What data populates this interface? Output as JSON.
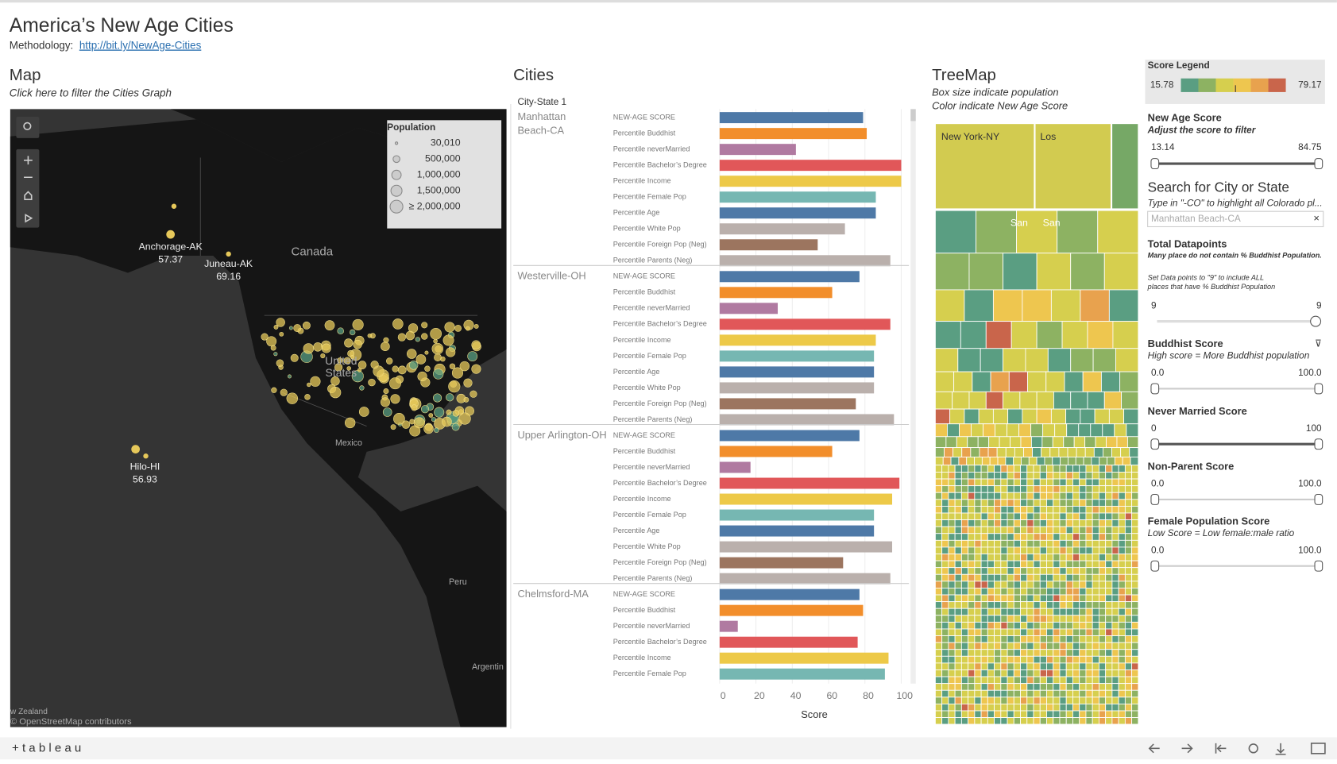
{
  "header": {
    "title": "America’s New Age Cities",
    "methodology_label": "Methodology:",
    "methodology_link": "http://bit.ly/NewAge-Cities"
  },
  "map": {
    "title": "Map",
    "subtitle": "Click here to filter the Cities Graph",
    "legend_title": "Population",
    "legend_items": [
      "30,010",
      "500,000",
      "1,000,000",
      "1,500,000",
      "≥ 2,000,000"
    ],
    "places": [
      {
        "label": "Anchorage-AK",
        "score": 57.37
      },
      {
        "label": "Juneau-AK",
        "score": 69.16
      },
      {
        "label": "Hilo-HI",
        "score": 56.93
      }
    ],
    "geo_labels": [
      "Canada",
      "United",
      "States",
      "Mexico",
      "Peru",
      "Argentin",
      "w Zealand"
    ],
    "attribution": "© OpenStreetMap contributors"
  },
  "chart_data": {
    "type": "bar",
    "orientation": "horizontal",
    "title": "Cities",
    "header": "City-State 1",
    "categories": [
      "Manhattan Beach-CA",
      "Westerville-OH",
      "Upper Arlington-OH",
      "Chelmsford-MA"
    ],
    "series": [
      {
        "name": "NEW-AGE SCORE",
        "color": "#4e79a7",
        "values": [
          79,
          77,
          77,
          77
        ]
      },
      {
        "name": "Percentile Buddhist",
        "color": "#f28e2b",
        "values": [
          81,
          62,
          62,
          79
        ]
      },
      {
        "name": "Percentile neverMarried",
        "color": "#b07aa1",
        "values": [
          42,
          32,
          17,
          10
        ]
      },
      {
        "name": "Percentile Bachelor’s Degree",
        "color": "#e15759",
        "values": [
          100,
          94,
          99,
          76
        ]
      },
      {
        "name": "Percentile Income",
        "color": "#edc948",
        "values": [
          100,
          86,
          95,
          93
        ]
      },
      {
        "name": "Percentile Female Pop",
        "color": "#76b7b2",
        "values": [
          86,
          85,
          85,
          91
        ]
      },
      {
        "name": "Percentile Age",
        "color": "#4e79a7",
        "values": [
          86,
          85,
          85,
          null
        ]
      },
      {
        "name": "Percentile White Pop",
        "color": "#bab0ac",
        "values": [
          69,
          85,
          95,
          null
        ]
      },
      {
        "name": "Percentile Foreign Pop (Neg)",
        "color": "#9c755f",
        "values": [
          54,
          75,
          68,
          null
        ]
      },
      {
        "name": "Percentile Parents (Neg)",
        "color": "#bab0ac",
        "values": [
          94,
          96,
          94,
          null
        ]
      }
    ],
    "xlim": [
      0,
      104
    ],
    "xticks": [
      0,
      20,
      40,
      60,
      80,
      100
    ],
    "xlabel": "Score",
    "grid": true
  },
  "treemap": {
    "title": "TreeMap",
    "subtitle1": "Box size indicate population",
    "subtitle2": "Color indicate New Age Score",
    "labels": [
      "New York-NY",
      "Los",
      "San",
      "San"
    ]
  },
  "score_legend": {
    "title": "Score Legend",
    "min": 15.78,
    "max": 79.17,
    "colors": [
      "#5a9e82",
      "#8db262",
      "#d6cf4e",
      "#eec64f",
      "#e8a24e",
      "#c9654b"
    ]
  },
  "new_age": {
    "title": "New Age Score",
    "subtitle": "Adjust the score to filter",
    "min": 13.14,
    "max": 84.75
  },
  "search": {
    "title": "Search for City or State",
    "hint": "Type in \"-CO\" to highlight all Colorado pl...",
    "value": "Manhattan Beach-CA"
  },
  "total": {
    "title": "Total Datapoints",
    "note1": "Many place do not contain % Buddhist Population.",
    "note2a": "Set Data points to \"9\" to include ALL",
    "note2b": "places that have % Buddhist Population",
    "min": 9,
    "max": 9
  },
  "filters": [
    {
      "title": "Buddhist Score",
      "subtitle": "High score = More Buddhist population",
      "min": "0.0",
      "max": "100.0"
    },
    {
      "title": "Never Married Score",
      "min": "0",
      "max": "100"
    },
    {
      "title": "Non-Parent Score",
      "min": "0.0",
      "max": "100.0"
    },
    {
      "title": "Female Population Score",
      "subtitle": "Low Score = Low female:male ratio",
      "min": "0.0",
      "max": "100.0"
    }
  ],
  "footer": {
    "logo": "+ t a b l e a u"
  }
}
